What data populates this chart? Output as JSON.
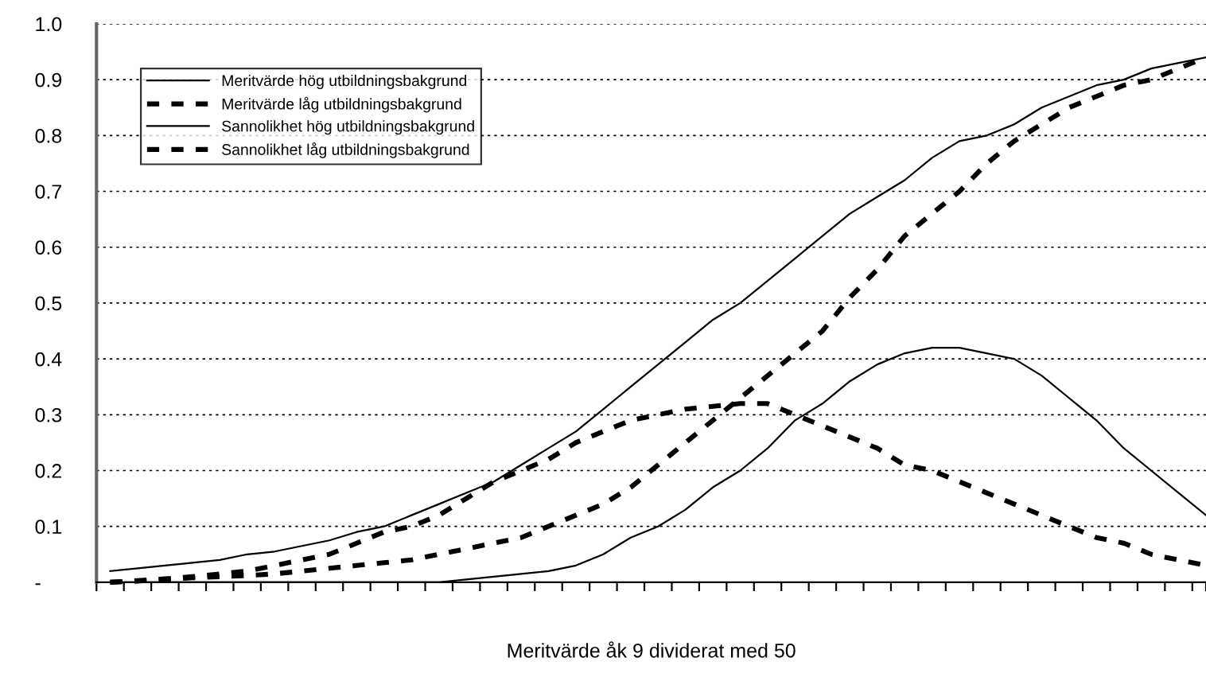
{
  "chart_data": {
    "type": "line",
    "xlabel": "Meritvärde åk 9 dividerat med 50",
    "categories": [
      null,
      null,
      null,
      null,
      null,
      null,
      null,
      null,
      null,
      null,
      null,
      null,
      null,
      null,
      null,
      null,
      null,
      null,
      null,
      null,
      null,
      null,
      null,
      null,
      null,
      null,
      null,
      null,
      null,
      null,
      null,
      null,
      null,
      null,
      null,
      null,
      null,
      null,
      null,
      null,
      null
    ],
    "series": [
      {
        "name": "Meritvärde hög utbildningsbakgrund",
        "color": "#000000",
        "line_style": "solid",
        "values": [
          0.02,
          0.025,
          0.03,
          0.035,
          0.04,
          0.05,
          0.055,
          0.065,
          0.075,
          0.09,
          0.1,
          0.12,
          0.14,
          0.16,
          0.18,
          0.21,
          0.24,
          0.27,
          0.31,
          0.35,
          0.39,
          0.43,
          0.47,
          0.5,
          0.54,
          0.58,
          0.62,
          0.66,
          0.69,
          0.72,
          0.76,
          0.79,
          0.8,
          0.82,
          0.85,
          0.87,
          0.89,
          0.9,
          0.92,
          0.93,
          0.94
        ]
      },
      {
        "name": "Meritvärde låg utbildningsbakgrund",
        "color": "#000000",
        "line_style": "dashed",
        "values": [
          0,
          0.002,
          0.005,
          0.008,
          0.01,
          0.012,
          0.015,
          0.02,
          0.025,
          0.03,
          0.035,
          0.04,
          0.05,
          0.06,
          0.07,
          0.08,
          0.1,
          0.12,
          0.14,
          0.17,
          0.21,
          0.25,
          0.29,
          0.33,
          0.37,
          0.41,
          0.45,
          0.51,
          0.56,
          0.62,
          0.66,
          0.7,
          0.75,
          0.79,
          0.82,
          0.85,
          0.87,
          0.89,
          0.9,
          0.92,
          0.94
        ]
      },
      {
        "name": "Sannolikhet hög utbildningsbakgrund",
        "color": "#000000",
        "line_style": "solid",
        "values": [
          0,
          0,
          0,
          0,
          0,
          0,
          0,
          0,
          0,
          0,
          0,
          0,
          0,
          0.005,
          0.01,
          0.015,
          0.02,
          0.03,
          0.05,
          0.08,
          0.1,
          0.13,
          0.17,
          0.2,
          0.24,
          0.29,
          0.32,
          0.36,
          0.39,
          0.41,
          0.42,
          0.42,
          0.41,
          0.4,
          0.37,
          0.33,
          0.29,
          0.24,
          0.2,
          0.16,
          0.12
        ]
      },
      {
        "name": "Sannolikhet låg utbildningsbakgrund",
        "color": "#000000",
        "line_style": "dashed",
        "values": [
          0,
          0.003,
          0.006,
          0.01,
          0.015,
          0.02,
          0.03,
          0.04,
          0.05,
          0.07,
          0.09,
          0.1,
          0.12,
          0.15,
          0.18,
          0.2,
          0.22,
          0.25,
          0.27,
          0.29,
          0.3,
          0.31,
          0.315,
          0.32,
          0.32,
          0.3,
          0.28,
          0.26,
          0.24,
          0.21,
          0.2,
          0.18,
          0.16,
          0.14,
          0.12,
          0.1,
          0.08,
          0.07,
          0.05,
          0.04,
          0.03
        ]
      }
    ],
    "ylim": [
      0,
      1.0
    ],
    "yticks": [
      {
        "value": 0,
        "label": "-"
      },
      0.1,
      0.2,
      0.3,
      0.4,
      0.5,
      0.6,
      0.7,
      0.8,
      0.9,
      {
        "value": 1,
        "label": "1.0"
      }
    ],
    "grid": "y",
    "legend": "top left",
    "marker": "none"
  }
}
